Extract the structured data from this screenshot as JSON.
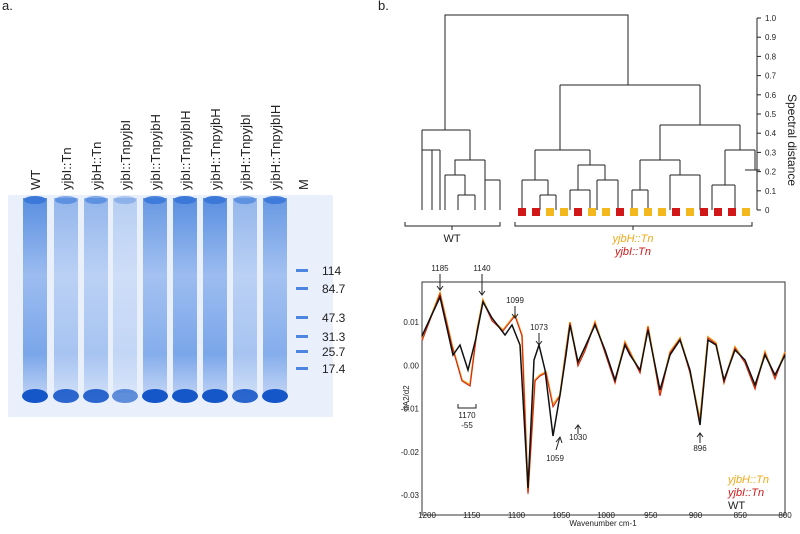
{
  "panel_a": {
    "label": "a.",
    "lanes": [
      "WT",
      "yjbI::Tn",
      "yjbH::Tn",
      "yjbI::TnpyjbI",
      "yjbI::TnpyjbH",
      "yjbI::TnpyjbIH",
      "yjbH::TnpyjbH",
      "yjbH::TnpyjbI",
      "yjbH::TnpyjbIH",
      "M"
    ],
    "markers": [
      "114",
      "84.7",
      "47.3",
      "31.3",
      "25.7",
      "17.4"
    ]
  },
  "panel_b": {
    "label": "b.",
    "dendrogram": {
      "axis_title": "Spectral distance",
      "ticks": [
        "1.0",
        "0.9",
        "0.8",
        "0.7",
        "0.6",
        "0.5",
        "0.4",
        "0.3",
        "0.2",
        "0.1",
        "0"
      ],
      "groups": [
        "WT",
        "yjbH::Tn",
        "yjbI::Tn"
      ]
    },
    "spectrum": {
      "x_label": "Wavenumber cm-1",
      "y_label": "dA2/d2",
      "xticks": [
        "1200",
        "1150",
        "1100",
        "1050",
        "1000",
        "950",
        "900",
        "850",
        "800"
      ],
      "yticks": [
        "0.01",
        "0.00",
        "-0.01",
        "-0.02",
        "-0.03"
      ],
      "peaks": [
        "1185",
        "1140",
        "1099",
        "1073",
        "1170",
        "-55",
        "1059",
        "1030",
        "896"
      ],
      "legend": [
        "yjbH::Tn",
        "yjbI::Tn",
        "WT"
      ]
    }
  }
}
